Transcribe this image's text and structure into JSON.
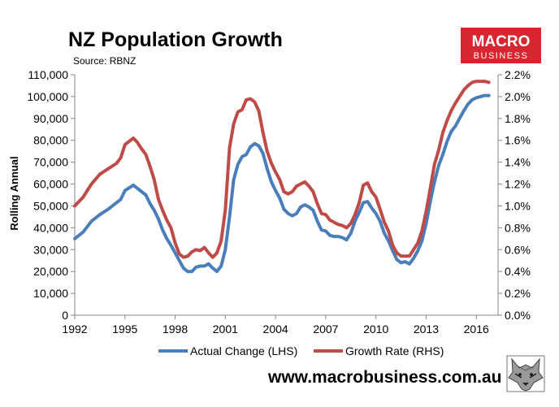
{
  "branding": {
    "logo_line1": "MACRO",
    "logo_line2": "BUSINESS",
    "logo_bg": "#d7262f",
    "website": "www.macrobusiness.com.au",
    "mascot_icon": "wolf-head-icon"
  },
  "chart_data": {
    "type": "line",
    "title": "NZ Population Growth",
    "subtitle": "Source: RBNZ",
    "ylabel": "Rolling Annual",
    "xlabel": "",
    "xlim": [
      1992,
      2017.3
    ],
    "ylim": [
      0,
      110000
    ],
    "y2lim": [
      0,
      0.022
    ],
    "x_ticks": [
      1992,
      1995,
      1998,
      2001,
      2004,
      2007,
      2010,
      2013,
      2016
    ],
    "x_tick_labels": [
      "1992",
      "1995",
      "1998",
      "2001",
      "2004",
      "2007",
      "2010",
      "2013",
      "2016"
    ],
    "y_ticks": [
      0,
      10000,
      20000,
      30000,
      40000,
      50000,
      60000,
      70000,
      80000,
      90000,
      100000,
      110000
    ],
    "y_tick_labels": [
      "0",
      "10,000",
      "20,000",
      "30,000",
      "40,000",
      "50,000",
      "60,000",
      "70,000",
      "80,000",
      "90,000",
      "100,000",
      "110,000"
    ],
    "y2_ticks": [
      0,
      0.002,
      0.004,
      0.006,
      0.008,
      0.01,
      0.012,
      0.014,
      0.016,
      0.018,
      0.02,
      0.022
    ],
    "y2_tick_labels": [
      "0.0%",
      "0.2%",
      "0.4%",
      "0.6%",
      "0.8%",
      "1.0%",
      "1.2%",
      "1.4%",
      "1.6%",
      "1.8%",
      "2.0%",
      "2.2%"
    ],
    "grid": false,
    "legend_position": "bottom",
    "series": [
      {
        "name": "Actual Change (LHS)",
        "axis": "left",
        "color": "#4a7ebb",
        "x": [
          1992.0,
          1992.5,
          1993.0,
          1993.5,
          1994.0,
          1994.5,
          1994.75,
          1995.0,
          1995.5,
          1995.75,
          1996.0,
          1996.25,
          1996.5,
          1996.75,
          1997.0,
          1997.25,
          1997.5,
          1997.75,
          1998.0,
          1998.25,
          1998.5,
          1998.75,
          1999.0,
          1999.25,
          1999.5,
          1999.75,
          2000.0,
          2000.25,
          2000.5,
          2000.75,
          2001.0,
          2001.25,
          2001.5,
          2001.75,
          2002.0,
          2002.25,
          2002.5,
          2002.75,
          2003.0,
          2003.25,
          2003.5,
          2003.75,
          2004.0,
          2004.25,
          2004.5,
          2004.75,
          2005.0,
          2005.25,
          2005.5,
          2005.75,
          2006.0,
          2006.25,
          2006.5,
          2006.75,
          2007.0,
          2007.25,
          2007.5,
          2007.75,
          2008.0,
          2008.25,
          2008.5,
          2008.75,
          2009.0,
          2009.25,
          2009.5,
          2009.75,
          2010.0,
          2010.25,
          2010.5,
          2010.75,
          2011.0,
          2011.25,
          2011.5,
          2011.75,
          2012.0,
          2012.25,
          2012.5,
          2012.75,
          2013.0,
          2013.25,
          2013.5,
          2013.75,
          2014.0,
          2014.25,
          2014.5,
          2014.75,
          2015.0,
          2015.25,
          2015.5,
          2015.75,
          2016.0,
          2016.25,
          2016.5,
          2016.75
        ],
        "values": [
          35000,
          38000,
          43000,
          46000,
          48500,
          51500,
          53000,
          57000,
          59500,
          58000,
          56500,
          55000,
          51000,
          48000,
          44000,
          39000,
          35000,
          32000,
          28500,
          25000,
          21500,
          20000,
          20000,
          22000,
          22500,
          22500,
          23500,
          21500,
          20000,
          22500,
          30000,
          45000,
          62000,
          69000,
          72500,
          73500,
          77000,
          78500,
          77500,
          74000,
          67000,
          61000,
          57000,
          53500,
          48500,
          46500,
          45500,
          46500,
          49500,
          50500,
          49500,
          48000,
          43000,
          39000,
          38500,
          36500,
          36000,
          36000,
          35500,
          34500,
          37500,
          43000,
          47000,
          51500,
          52000,
          49000,
          46500,
          43000,
          37500,
          34000,
          29500,
          25500,
          24000,
          24500,
          23500,
          26000,
          29500,
          34000,
          42000,
          52000,
          61000,
          68500,
          73500,
          79500,
          84000,
          86500,
          90000,
          93500,
          96500,
          98500,
          99500,
          100000,
          100500,
          100500
        ]
      },
      {
        "name": "Growth Rate (RHS)",
        "axis": "right",
        "color": "#be4b48",
        "x": [
          1992.0,
          1992.5,
          1993.0,
          1993.5,
          1994.0,
          1994.5,
          1994.75,
          1995.0,
          1995.5,
          1995.75,
          1996.0,
          1996.25,
          1996.5,
          1996.75,
          1997.0,
          1997.25,
          1997.5,
          1997.75,
          1998.0,
          1998.25,
          1998.5,
          1998.75,
          1999.0,
          1999.25,
          1999.5,
          1999.75,
          2000.0,
          2000.25,
          2000.5,
          2000.75,
          2001.0,
          2001.25,
          2001.5,
          2001.75,
          2002.0,
          2002.25,
          2002.5,
          2002.75,
          2003.0,
          2003.25,
          2003.5,
          2003.75,
          2004.0,
          2004.25,
          2004.5,
          2004.75,
          2005.0,
          2005.25,
          2005.5,
          2005.75,
          2006.0,
          2006.25,
          2006.5,
          2006.75,
          2007.0,
          2007.25,
          2007.5,
          2007.75,
          2008.0,
          2008.25,
          2008.5,
          2008.75,
          2009.0,
          2009.25,
          2009.5,
          2009.75,
          2010.0,
          2010.25,
          2010.5,
          2010.75,
          2011.0,
          2011.25,
          2011.5,
          2011.75,
          2012.0,
          2012.25,
          2012.5,
          2012.75,
          2013.0,
          2013.25,
          2013.5,
          2013.75,
          2014.0,
          2014.25,
          2014.5,
          2014.75,
          2015.0,
          2015.25,
          2015.5,
          2015.75,
          2016.0,
          2016.25,
          2016.5,
          2016.75
        ],
        "values": [
          0.01,
          0.0108,
          0.012,
          0.0129,
          0.0134,
          0.0139,
          0.0144,
          0.0156,
          0.0162,
          0.0158,
          0.0152,
          0.0147,
          0.0136,
          0.0124,
          0.0106,
          0.0096,
          0.0087,
          0.008,
          0.0066,
          0.0056,
          0.0053,
          0.0054,
          0.0058,
          0.006,
          0.0059,
          0.0062,
          0.0057,
          0.0053,
          0.0057,
          0.0068,
          0.0096,
          0.0153,
          0.0175,
          0.0186,
          0.0188,
          0.0197,
          0.0198,
          0.0195,
          0.0187,
          0.0167,
          0.015,
          0.0139,
          0.0131,
          0.0124,
          0.0113,
          0.0111,
          0.0113,
          0.0118,
          0.012,
          0.0122,
          0.0118,
          0.0113,
          0.0102,
          0.0093,
          0.0092,
          0.0087,
          0.0085,
          0.0083,
          0.0082,
          0.008,
          0.0084,
          0.0092,
          0.0103,
          0.0119,
          0.0121,
          0.0113,
          0.0108,
          0.0097,
          0.0085,
          0.0077,
          0.0064,
          0.0057,
          0.0054,
          0.0054,
          0.0054,
          0.006,
          0.0066,
          0.0077,
          0.0095,
          0.0116,
          0.0138,
          0.0151,
          0.0167,
          0.0178,
          0.0187,
          0.0194,
          0.02,
          0.0206,
          0.021,
          0.0213,
          0.0214,
          0.0214,
          0.0214,
          0.0213
        ]
      }
    ]
  }
}
